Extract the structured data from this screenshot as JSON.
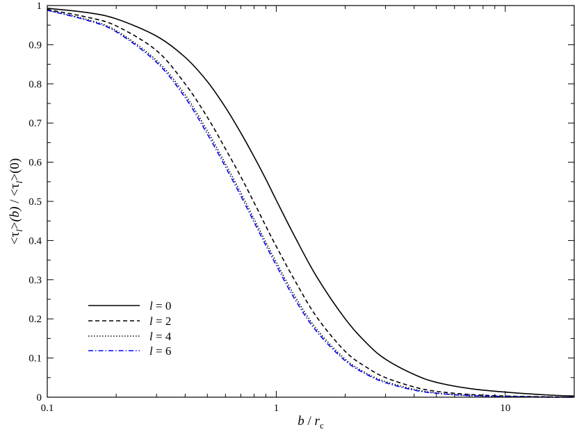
{
  "chart_data": {
    "type": "line",
    "xscale": "log",
    "xlim": [
      0.1,
      20
    ],
    "ylim": [
      0,
      1
    ],
    "grid": false,
    "legend_position": "lower-left",
    "x_tick_labels": [
      "0.1",
      "1",
      "10"
    ],
    "x_tick_values": [
      0.1,
      1,
      10
    ],
    "y_tick_labels": [
      "0",
      "0.1",
      "0.2",
      "0.3",
      "0.4",
      "0.5",
      "0.6",
      "0.7",
      "0.8",
      "0.9",
      "1"
    ],
    "y_tick_values": [
      0,
      0.1,
      0.2,
      0.3,
      0.4,
      0.5,
      0.6,
      0.7,
      0.8,
      0.9,
      1.0
    ],
    "x": [
      0.1,
      0.15,
      0.2,
      0.3,
      0.4,
      0.5,
      0.6,
      0.7,
      0.8,
      0.9,
      1.0,
      1.2,
      1.5,
      2.0,
      2.5,
      3.0,
      4.0,
      5.0,
      7.0,
      10.0,
      15.0,
      20.0
    ],
    "series": [
      {
        "name": "l = 0",
        "color": "#000000",
        "dash": "solid",
        "values": [
          0.993,
          0.982,
          0.966,
          0.922,
          0.868,
          0.806,
          0.74,
          0.675,
          0.614,
          0.557,
          0.503,
          0.412,
          0.308,
          0.2,
          0.136,
          0.097,
          0.058,
          0.038,
          0.022,
          0.013,
          0.006,
          0.003
        ]
      },
      {
        "name": "l = 2",
        "color": "#000000",
        "dash": "dashed",
        "values": [
          0.99,
          0.97,
          0.948,
          0.885,
          0.8,
          0.715,
          0.634,
          0.563,
          0.497,
          0.437,
          0.385,
          0.3,
          0.205,
          0.117,
          0.075,
          0.05,
          0.026,
          0.015,
          0.007,
          0.003,
          0.001,
          0.0
        ]
      },
      {
        "name": "l = 4",
        "color": "#000000",
        "dash": "dotted",
        "values": [
          0.988,
          0.964,
          0.936,
          0.86,
          0.772,
          0.68,
          0.596,
          0.522,
          0.455,
          0.396,
          0.345,
          0.26,
          0.174,
          0.097,
          0.06,
          0.04,
          0.02,
          0.011,
          0.004,
          0.002,
          0.001,
          0.0
        ]
      },
      {
        "name": "l = 6",
        "color": "#0000ff",
        "dash": "dashdot",
        "values": [
          0.988,
          0.962,
          0.933,
          0.855,
          0.765,
          0.672,
          0.588,
          0.514,
          0.447,
          0.388,
          0.337,
          0.252,
          0.168,
          0.093,
          0.057,
          0.037,
          0.018,
          0.01,
          0.004,
          0.002,
          0.0,
          0.0
        ]
      }
    ],
    "legend": [
      {
        "prefix": "l",
        "label": " = 0"
      },
      {
        "prefix": "l",
        "label": " = 2"
      },
      {
        "prefix": "l",
        "label": " = 4"
      },
      {
        "prefix": "l",
        "label": " = 6"
      }
    ],
    "xlabel": {
      "main": "b",
      "sep": " / ",
      "var": "r",
      "sub": "c"
    },
    "ylabel": {
      "lt1": "<",
      "tau1": "τ",
      "sub1": "l",
      "gt1": ">",
      "arg1": "(b)",
      "slash": " / ",
      "lt2": "<",
      "tau2": "τ",
      "sub2": "l",
      "gt2": ">",
      "arg2": "(0)"
    }
  }
}
